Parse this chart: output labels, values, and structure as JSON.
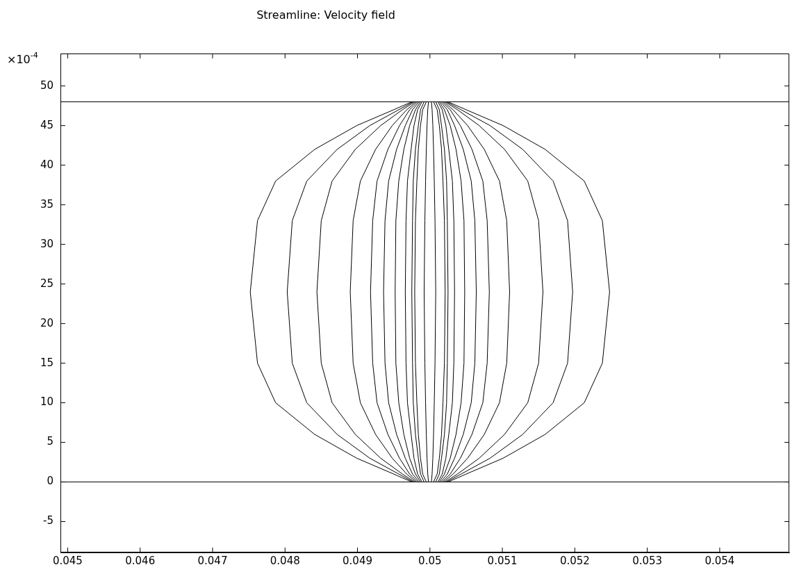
{
  "chart_data": {
    "type": "line",
    "title": "Streamline: Velocity field",
    "ylabel": "×10$^{-4}$",
    "xlim": [
      0.0449,
      0.05496
    ],
    "xticks": [
      0.045,
      0.046,
      0.047,
      0.048,
      0.049,
      0.05,
      0.051,
      0.052,
      0.053,
      0.054
    ],
    "ylim": [
      -8.9,
      54.1
    ],
    "yticks": [
      -5,
      0,
      5,
      10,
      15,
      20,
      25,
      30,
      35,
      40,
      45,
      50
    ],
    "grid": false,
    "legend": false,
    "marker": "none",
    "line_style": "solid",
    "ref_lines": [
      {
        "axis": "y",
        "value": 0,
        "color": "#000000"
      },
      {
        "axis": "y",
        "value": 48,
        "color": "#000000"
      }
    ],
    "series": [
      {
        "color": "#000000",
        "x": [
          0.04975,
          0.0495,
          0.04899,
          0.04841,
          0.04787,
          0.04762,
          0.04752,
          0.04762,
          0.04787,
          0.04841,
          0.04899,
          0.0495,
          0.04975
        ],
        "values": [
          0,
          1,
          3,
          6,
          10,
          15,
          24,
          33,
          38,
          42,
          45,
          47,
          48
        ]
      },
      {
        "color": "#000000",
        "x": [
          0.04977,
          0.04957,
          0.04917,
          0.04872,
          0.0483,
          0.0481,
          0.04803,
          0.0481,
          0.0483,
          0.04872,
          0.04917,
          0.04957,
          0.04977
        ],
        "values": [
          0,
          1,
          3,
          6,
          10,
          15,
          24,
          33,
          38,
          42,
          45,
          47,
          48
        ]
      },
      {
        "color": "#000000",
        "x": [
          0.04979,
          0.04962,
          0.04932,
          0.04897,
          0.04865,
          0.0485,
          0.04844,
          0.0485,
          0.04865,
          0.04897,
          0.04932,
          0.04962,
          0.04979
        ],
        "values": [
          0,
          1,
          3,
          6,
          10,
          15,
          24,
          33,
          38,
          42,
          45,
          47,
          48
        ]
      },
      {
        "color": "#000000",
        "x": [
          0.04981,
          0.04968,
          0.04948,
          0.04925,
          0.04904,
          0.04894,
          0.0489,
          0.04894,
          0.04904,
          0.04925,
          0.04948,
          0.04968,
          0.04981
        ],
        "values": [
          0,
          1,
          3,
          6,
          10,
          15,
          24,
          33,
          38,
          42,
          45,
          47,
          48
        ]
      },
      {
        "color": "#000000",
        "x": [
          0.04983,
          0.04972,
          0.04958,
          0.04942,
          0.04927,
          0.04921,
          0.04918,
          0.04921,
          0.04927,
          0.04942,
          0.04958,
          0.04972,
          0.04983
        ],
        "values": [
          0,
          1,
          3,
          6,
          10,
          15,
          24,
          33,
          38,
          42,
          45,
          47,
          48
        ]
      },
      {
        "color": "#000000",
        "x": [
          0.04985,
          0.04976,
          0.04966,
          0.04954,
          0.04943,
          0.04938,
          0.04936,
          0.04938,
          0.04943,
          0.04954,
          0.04966,
          0.04976,
          0.04985
        ],
        "values": [
          0,
          1,
          3,
          6,
          10,
          15,
          24,
          33,
          38,
          42,
          45,
          47,
          48
        ]
      },
      {
        "color": "#000000",
        "x": [
          0.04987,
          0.0498,
          0.04972,
          0.04964,
          0.04957,
          0.04953,
          0.04952,
          0.04953,
          0.04957,
          0.04964,
          0.04972,
          0.0498,
          0.04987
        ],
        "values": [
          0,
          1,
          3,
          6,
          10,
          15,
          24,
          33,
          38,
          42,
          45,
          47,
          48
        ]
      },
      {
        "color": "#000000",
        "x": [
          0.04989,
          0.04983,
          0.04978,
          0.04974,
          0.04969,
          0.04967,
          0.04966,
          0.04967,
          0.04969,
          0.04974,
          0.04978,
          0.04983,
          0.04989
        ],
        "values": [
          0,
          1,
          3,
          6,
          10,
          15,
          24,
          33,
          38,
          42,
          45,
          47,
          48
        ]
      },
      {
        "color": "#000000",
        "x": [
          0.04992,
          0.04987,
          0.04984,
          0.0498,
          0.04977,
          0.04976,
          0.04975,
          0.04976,
          0.04977,
          0.0498,
          0.04984,
          0.04987,
          0.04992
        ],
        "values": [
          0,
          1,
          3,
          6,
          10,
          15,
          24,
          33,
          38,
          42,
          45,
          47,
          48
        ]
      },
      {
        "color": "#000000",
        "x": [
          0.04995,
          0.0499,
          0.04987,
          0.04984,
          0.04982,
          0.0498,
          0.04979,
          0.0498,
          0.04982,
          0.04984,
          0.04987,
          0.0499,
          0.04995
        ],
        "values": [
          0,
          1,
          3,
          6,
          10,
          15,
          24,
          33,
          38,
          42,
          45,
          47,
          48
        ]
      },
      {
        "color": "#000000",
        "x": [
          0.04998,
          0.04997,
          0.04996,
          0.04995,
          0.04994,
          0.04993,
          0.04992,
          0.04993,
          0.04994,
          0.04995,
          0.04996,
          0.04997,
          0.04998
        ],
        "values": [
          0,
          1,
          3,
          6,
          10,
          15,
          24,
          33,
          38,
          42,
          45,
          47,
          48
        ]
      },
      {
        "color": "#000000",
        "x": [
          0.05002,
          0.05003,
          0.05004,
          0.05005,
          0.05006,
          0.05007,
          0.05008,
          0.05007,
          0.05006,
          0.05005,
          0.05004,
          0.05003,
          0.05002
        ],
        "values": [
          0,
          1,
          3,
          6,
          10,
          15,
          24,
          33,
          38,
          42,
          45,
          47,
          48
        ]
      },
      {
        "color": "#000000",
        "x": [
          0.05005,
          0.0501,
          0.05013,
          0.05016,
          0.05018,
          0.0502,
          0.05021,
          0.0502,
          0.05018,
          0.05016,
          0.05013,
          0.0501,
          0.05005
        ],
        "values": [
          0,
          1,
          3,
          6,
          10,
          15,
          24,
          33,
          38,
          42,
          45,
          47,
          48
        ]
      },
      {
        "color": "#000000",
        "x": [
          0.05008,
          0.05013,
          0.05016,
          0.0502,
          0.05023,
          0.05024,
          0.05025,
          0.05024,
          0.05023,
          0.0502,
          0.05016,
          0.05013,
          0.05008
        ],
        "values": [
          0,
          1,
          3,
          6,
          10,
          15,
          24,
          33,
          38,
          42,
          45,
          47,
          48
        ]
      },
      {
        "color": "#000000",
        "x": [
          0.05011,
          0.05017,
          0.05022,
          0.05026,
          0.05031,
          0.05033,
          0.05034,
          0.05033,
          0.05031,
          0.05026,
          0.05022,
          0.05017,
          0.05011
        ],
        "values": [
          0,
          1,
          3,
          6,
          10,
          15,
          24,
          33,
          38,
          42,
          45,
          47,
          48
        ]
      },
      {
        "color": "#000000",
        "x": [
          0.05013,
          0.0502,
          0.05028,
          0.05036,
          0.05043,
          0.05047,
          0.05048,
          0.05047,
          0.05043,
          0.05036,
          0.05028,
          0.0502,
          0.05013
        ],
        "values": [
          0,
          1,
          3,
          6,
          10,
          15,
          24,
          33,
          38,
          42,
          45,
          47,
          48
        ]
      },
      {
        "color": "#000000",
        "x": [
          0.05015,
          0.05024,
          0.05034,
          0.05046,
          0.05057,
          0.05062,
          0.05064,
          0.05062,
          0.05057,
          0.05046,
          0.05034,
          0.05024,
          0.05015
        ],
        "values": [
          0,
          1,
          3,
          6,
          10,
          15,
          24,
          33,
          38,
          42,
          45,
          47,
          48
        ]
      },
      {
        "color": "#000000",
        "x": [
          0.05017,
          0.05028,
          0.05042,
          0.05058,
          0.05073,
          0.05079,
          0.05082,
          0.05079,
          0.05073,
          0.05058,
          0.05042,
          0.05028,
          0.05017
        ],
        "values": [
          0,
          1,
          3,
          6,
          10,
          15,
          24,
          33,
          38,
          42,
          45,
          47,
          48
        ]
      },
      {
        "color": "#000000",
        "x": [
          0.05019,
          0.05032,
          0.05052,
          0.05075,
          0.05096,
          0.05106,
          0.0511,
          0.05106,
          0.05096,
          0.05075,
          0.05052,
          0.05032,
          0.05019
        ],
        "values": [
          0,
          1,
          3,
          6,
          10,
          15,
          24,
          33,
          38,
          42,
          45,
          47,
          48
        ]
      },
      {
        "color": "#000000",
        "x": [
          0.05021,
          0.05038,
          0.05068,
          0.05103,
          0.05135,
          0.0515,
          0.05156,
          0.0515,
          0.05135,
          0.05103,
          0.05068,
          0.05038,
          0.05021
        ],
        "values": [
          0,
          1,
          3,
          6,
          10,
          15,
          24,
          33,
          38,
          42,
          45,
          47,
          48
        ]
      },
      {
        "color": "#000000",
        "x": [
          0.05023,
          0.05043,
          0.05083,
          0.05128,
          0.0517,
          0.0519,
          0.05197,
          0.0519,
          0.0517,
          0.05128,
          0.05083,
          0.05043,
          0.05023
        ],
        "values": [
          0,
          1,
          3,
          6,
          10,
          15,
          24,
          33,
          38,
          42,
          45,
          47,
          48
        ]
      },
      {
        "color": "#000000",
        "x": [
          0.05025,
          0.0505,
          0.05101,
          0.05159,
          0.05213,
          0.05238,
          0.05248,
          0.05238,
          0.05213,
          0.05159,
          0.05101,
          0.0505,
          0.05025
        ],
        "values": [
          0,
          1,
          3,
          6,
          10,
          15,
          24,
          33,
          38,
          42,
          45,
          47,
          48
        ]
      }
    ]
  }
}
